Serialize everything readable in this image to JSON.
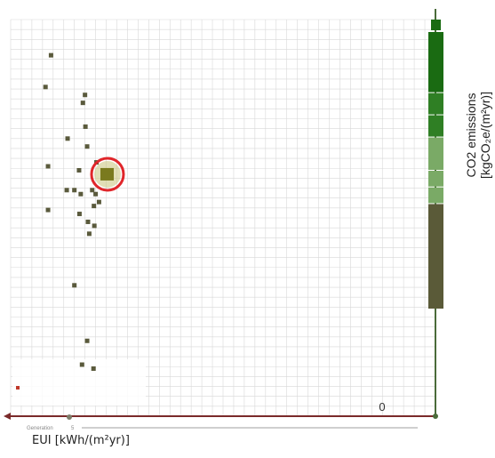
{
  "chart_data": {
    "type": "scatter",
    "xlabel": "EUI [kWh/(m²yr)]",
    "ylabel_line1": "CO2 emissions",
    "ylabel_line2": "[kgCO₂e/(m²yr)]",
    "axis_value_label": "0",
    "generation_label": "Generation",
    "generation_value": "5",
    "grid": true,
    "x_ticks_visible": false,
    "y_ticks_visible": false,
    "points": [
      {
        "x": 0.095,
        "y": 0.91
      },
      {
        "x": 0.082,
        "y": 0.83
      },
      {
        "x": 0.175,
        "y": 0.81
      },
      {
        "x": 0.17,
        "y": 0.79
      },
      {
        "x": 0.176,
        "y": 0.73
      },
      {
        "x": 0.134,
        "y": 0.7
      },
      {
        "x": 0.18,
        "y": 0.68
      },
      {
        "x": 0.202,
        "y": 0.64
      },
      {
        "x": 0.088,
        "y": 0.63
      },
      {
        "x": 0.161,
        "y": 0.62
      },
      {
        "x": 0.132,
        "y": 0.57
      },
      {
        "x": 0.15,
        "y": 0.57
      },
      {
        "x": 0.192,
        "y": 0.57
      },
      {
        "x": 0.165,
        "y": 0.56
      },
      {
        "x": 0.2,
        "y": 0.56
      },
      {
        "x": 0.208,
        "y": 0.54
      },
      {
        "x": 0.196,
        "y": 0.53
      },
      {
        "x": 0.088,
        "y": 0.52
      },
      {
        "x": 0.162,
        "y": 0.51
      },
      {
        "x": 0.182,
        "y": 0.49
      },
      {
        "x": 0.197,
        "y": 0.48
      },
      {
        "x": 0.185,
        "y": 0.46
      },
      {
        "x": 0.15,
        "y": 0.33
      },
      {
        "x": 0.18,
        "y": 0.19
      },
      {
        "x": 0.168,
        "y": 0.13
      },
      {
        "x": 0.195,
        "y": 0.12
      }
    ],
    "highlighted_point": {
      "x": 0.228,
      "y": 0.61
    },
    "colors": {
      "point": "#5a5a3c",
      "highlight_fill": "#7a7a1e",
      "highlight_glow": "#c9c27a",
      "highlight_ring": "#e0262a",
      "grid": "#d8d8d8",
      "x_axis": "#7a2a2a",
      "y_axis": "#4a6b3a",
      "bar_dark_green": "#1a6b12",
      "bar_mid_green": "#2f7f24",
      "bar_light_green": "#7aaa66",
      "bar_olive": "#5a5a38"
    },
    "color_bar": [
      {
        "from": 0.0,
        "to": 0.38,
        "color": "bar_olive"
      },
      {
        "from": 0.38,
        "to": 0.44,
        "color": "bar_light_green"
      },
      {
        "from": 0.44,
        "to": 0.5,
        "color": "bar_light_green"
      },
      {
        "from": 0.5,
        "to": 0.62,
        "color": "bar_light_green"
      },
      {
        "from": 0.62,
        "to": 0.7,
        "color": "bar_mid_green"
      },
      {
        "from": 0.7,
        "to": 0.78,
        "color": "bar_mid_green"
      },
      {
        "from": 0.78,
        "to": 1.0,
        "color": "bar_dark_green"
      }
    ]
  }
}
